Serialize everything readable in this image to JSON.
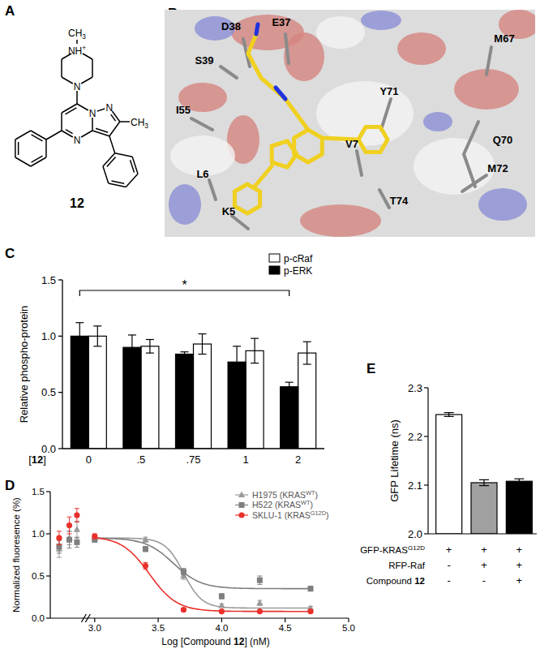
{
  "figure": {
    "panels": [
      "A",
      "B",
      "C",
      "D",
      "E"
    ]
  },
  "structure": {
    "label": "12",
    "atoms": [
      "CH3",
      "NH+",
      "N",
      "N",
      "N",
      "N",
      "CH3"
    ]
  },
  "docking": {
    "residues": [
      "D38",
      "E37",
      "S39",
      "M67",
      "Y71",
      "I55",
      "V7",
      "Q70",
      "M72",
      "L6",
      "K5",
      "T74"
    ]
  },
  "chart_data": [
    {
      "type": "bar",
      "xlabel": "[12]",
      "ylabel": "Relative phospho-protein",
      "categories": [
        "0",
        ".5",
        ".75",
        "1",
        "2"
      ],
      "series": [
        {
          "name": "p-cRaf",
          "color": "#ffffff",
          "values": [
            1.0,
            0.91,
            0.93,
            0.87,
            0.85
          ],
          "errors": [
            0.09,
            0.06,
            0.09,
            0.11,
            0.1
          ]
        },
        {
          "name": "p-ERK",
          "color": "#000000",
          "values": [
            1.0,
            0.9,
            0.84,
            0.77,
            0.55
          ],
          "errors": [
            0.12,
            0.11,
            0.02,
            0.14,
            0.04
          ]
        }
      ],
      "ylim": [
        0,
        1.5
      ],
      "yticks": [
        {
          "value": 0,
          "label": "0.0"
        },
        0.5,
        {
          "value": 1,
          "label": "1.0"
        },
        1.5
      ],
      "legend": "upper right",
      "annotations": [
        {
          "text": "*",
          "from": "0",
          "to": "2"
        }
      ]
    },
    {
      "type": "scatter",
      "xlabel": "Log [Compound 12] (nM)",
      "ylabel": "Normalized fluoresence (%)",
      "x": [
        2.72,
        2.8,
        2.86,
        3.0,
        3.4,
        3.7,
        4.0,
        4.3,
        4.7
      ],
      "series": [
        {
          "name": "H1975 (KRASWT)",
          "color": "#9a9a9a",
          "marker": "triangle",
          "values": [
            0.82,
            0.95,
            1.05,
            0.95,
            0.93,
            0.5,
            0.15,
            0.18,
            0.12
          ],
          "errors": [
            0.1,
            0.08,
            0.1,
            0.03,
            0.03,
            0.04,
            0.02,
            0.03,
            0.02
          ],
          "fit": {
            "top": 0.95,
            "bottom": 0.12,
            "log_ic50": 3.7,
            "hill": -6
          }
        },
        {
          "name": "H522 (KRASWT)",
          "color": "#7f7f7f",
          "marker": "square",
          "values": [
            0.85,
            0.93,
            0.9,
            0.93,
            0.82,
            0.55,
            0.26,
            0.45,
            0.35
          ],
          "errors": [
            0.08,
            0.1,
            0.06,
            0.03,
            0.03,
            0.04,
            0.03,
            0.05,
            0.03
          ],
          "fit": {
            "top": 0.95,
            "bottom": 0.35,
            "log_ic50": 3.62,
            "hill": -4
          }
        },
        {
          "name": "SKLU-1 (KRASG12D)",
          "color": "#e8312b",
          "marker": "circle",
          "values": [
            0.95,
            1.1,
            1.22,
            0.97,
            0.62,
            0.1,
            0.08,
            0.08,
            0.08
          ],
          "errors": [
            0.08,
            0.1,
            0.08,
            0.03,
            0.04,
            0.02,
            0.01,
            0.01,
            0.01
          ],
          "fit": {
            "top": 0.97,
            "bottom": 0.08,
            "log_ic50": 3.43,
            "hill": -4
          }
        }
      ],
      "xlim": [
        2.65,
        5.0
      ],
      "xticks": [
        {
          "value": 3,
          "label": "3.0"
        },
        3.5,
        {
          "value": 4,
          "label": "4.0"
        },
        4.5,
        {
          "value": 5,
          "label": "5.0"
        }
      ],
      "ylim": [
        0,
        1.5
      ],
      "yticks": [
        {
          "value": 0,
          "label": "0.0"
        },
        0.5,
        {
          "value": 1,
          "label": "1.0"
        },
        1.5
      ],
      "legend": "upper right"
    },
    {
      "type": "bar",
      "ylabel": "GFP Lifetime (ns)",
      "categories": [
        null,
        null,
        null
      ],
      "values": [
        2.245,
        2.105,
        2.108
      ],
      "errors": [
        0.004,
        0.006,
        0.005
      ],
      "colors": [
        "#ffffff",
        "#a0a0a0",
        "#000000"
      ],
      "ylim": [
        2.0,
        2.3
      ],
      "yticks": [
        {
          "value": 2,
          "label": "2.0"
        },
        2.1,
        2.2,
        2.3
      ],
      "conditions": [
        {
          "label": "GFP-KRASG12D",
          "values": [
            "+",
            "+",
            "+"
          ]
        },
        {
          "label": "RFP-Raf",
          "values": [
            "-",
            "+",
            "+"
          ]
        },
        {
          "label": "Compound 12",
          "values": [
            "-",
            "-",
            "+"
          ]
        }
      ]
    }
  ]
}
